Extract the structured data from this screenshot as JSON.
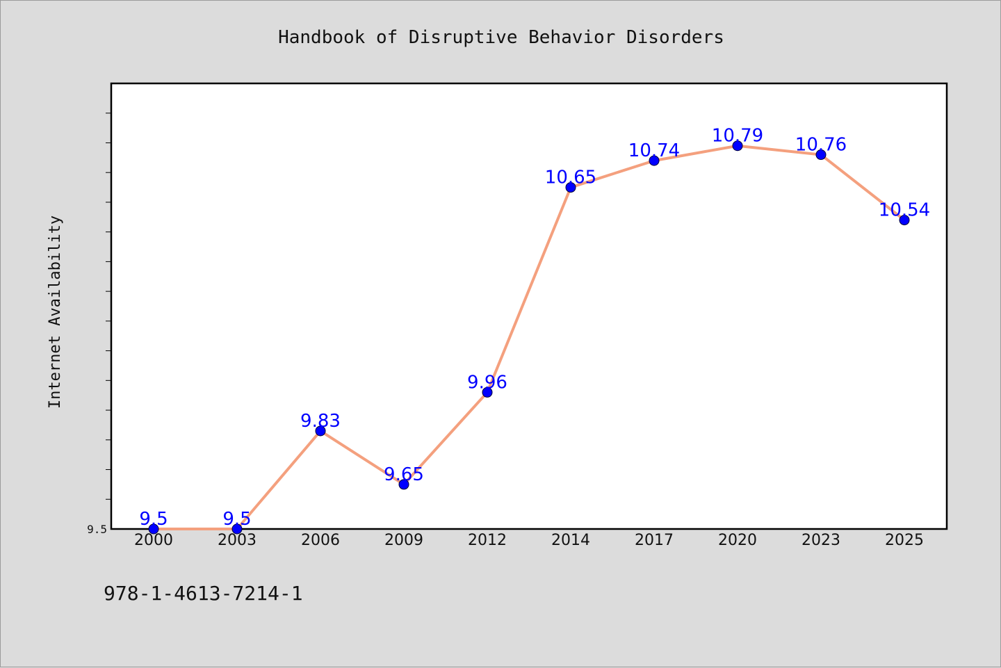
{
  "chart_data": {
    "type": "line",
    "title": "Handbook of Disruptive Behavior Disorders",
    "ylabel": "Internet Availability",
    "xlabel": "",
    "x": [
      "2000",
      "2003",
      "2006",
      "2009",
      "2012",
      "2014",
      "2017",
      "2020",
      "2023",
      "2025"
    ],
    "series": [
      {
        "values": [
          9.5,
          9.5,
          9.83,
          9.65,
          9.96,
          10.65,
          10.74,
          10.79,
          10.76,
          10.54
        ]
      }
    ],
    "data_labels": [
      "9.5",
      "9.5",
      "9.83",
      "9.65",
      "9.96",
      "10.65",
      "10.74",
      "10.79",
      "10.76",
      "10.54"
    ],
    "ylim": [
      9.5,
      11.0
    ],
    "yticks_labeled": [
      "9.5"
    ],
    "grid": false,
    "line_color": "#f4a07e",
    "marker_color": "#0000ff",
    "label_color": "#0000ff"
  },
  "footnote": "978-1-4613-7214-1"
}
